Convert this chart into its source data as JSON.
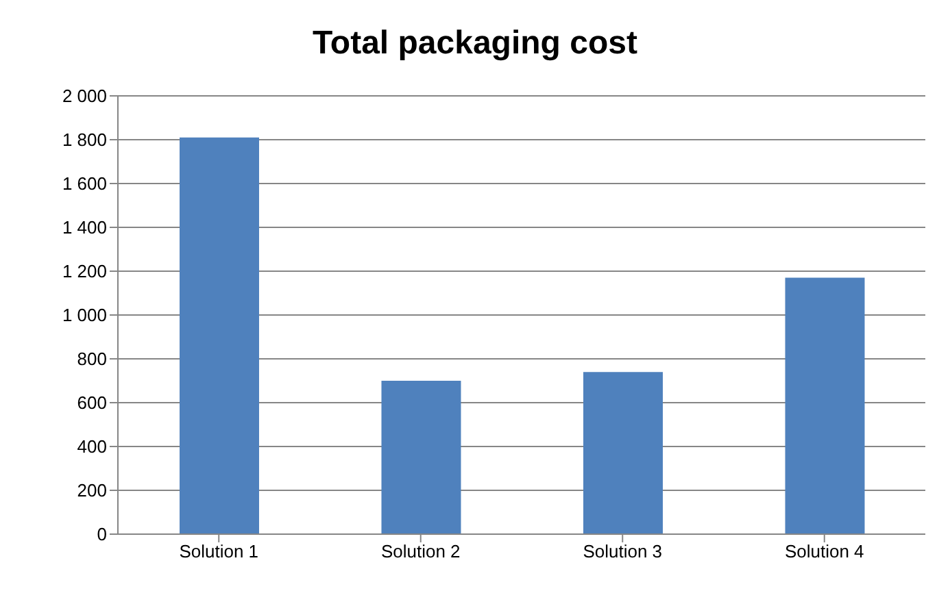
{
  "chart_data": {
    "type": "bar",
    "title": "Total packaging cost",
    "categories": [
      "Solution 1",
      "Solution 2",
      "Solution 3",
      "Solution 4"
    ],
    "values": [
      1810,
      700,
      740,
      1170
    ],
    "color": "#4f81bd",
    "ylim": [
      0,
      2000
    ],
    "yticks": [
      0,
      200,
      400,
      600,
      800,
      {
        "value": 1000,
        "label": "1 000"
      },
      {
        "value": 1200,
        "label": "1 200"
      },
      {
        "value": 1400,
        "label": "1 400"
      },
      {
        "value": 1600,
        "label": "1 600"
      },
      {
        "value": 1800,
        "label": "1 800"
      },
      {
        "value": 2000,
        "label": "2 000"
      }
    ],
    "grid": "y"
  }
}
